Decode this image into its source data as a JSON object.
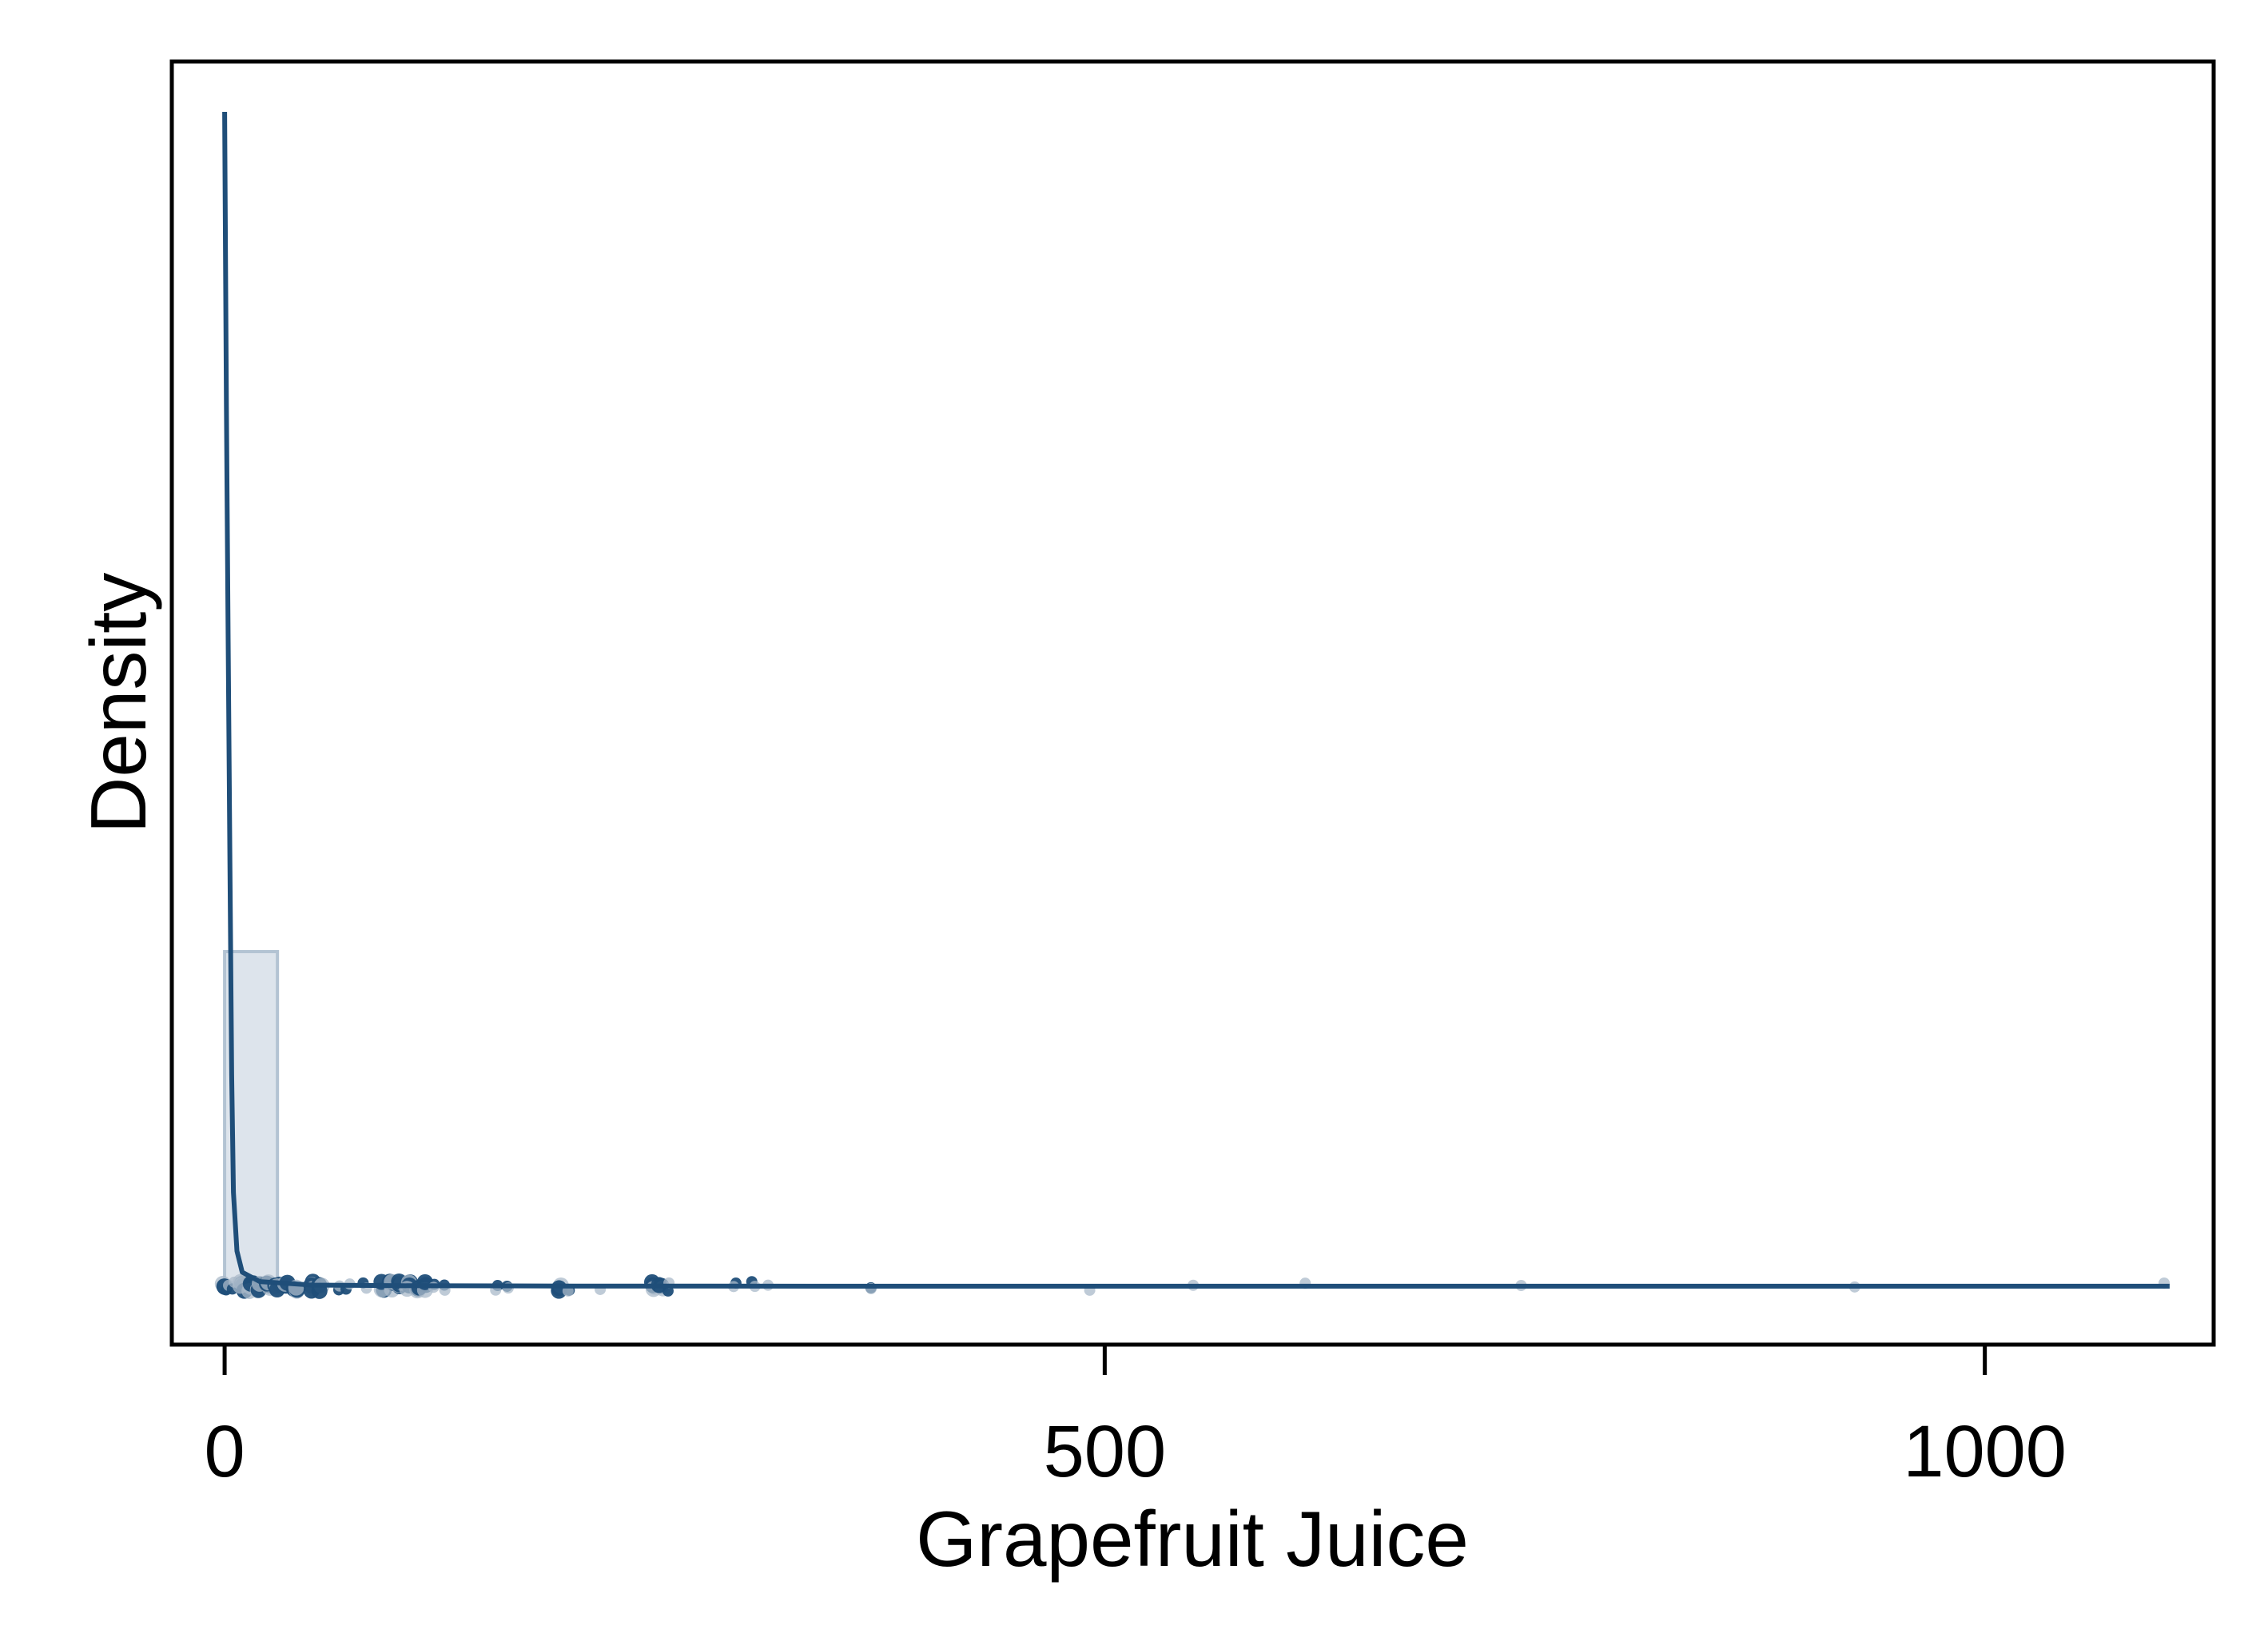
{
  "chart_data": {
    "type": "histogram-density",
    "title": "",
    "xlabel": "Grapefruit Juice",
    "ylabel": "Density",
    "xlim": [
      -30,
      1130
    ],
    "x_ticks": [
      0,
      500,
      1000
    ],
    "x_tick_labels": [
      "0",
      "500",
      "1000"
    ],
    "y_tick_labels": [],
    "grid": false,
    "legend": "none",
    "histogram": {
      "bins": [
        {
          "x0": 0,
          "x1": 30,
          "density": 0.0285
        }
      ]
    },
    "density_curve": {
      "x": [
        0,
        1,
        2,
        3,
        4,
        5,
        7,
        10,
        20,
        50,
        100,
        200,
        400,
        700,
        1000,
        1105
      ],
      "y": [
        0.1,
        0.075,
        0.055,
        0.036,
        0.018,
        0.008,
        0.003,
        0.0012,
        0.0004,
        0.0001,
        5e-05,
        2e-05,
        1e-05,
        1e-05,
        1e-05,
        1e-05
      ]
    },
    "observations": [
      {
        "value": 0,
        "n": 3
      },
      {
        "value": 2,
        "n": 2
      },
      {
        "value": 5,
        "n": 2
      },
      {
        "value": 10,
        "n": 6
      },
      {
        "value": 15,
        "n": 5
      },
      {
        "value": 20,
        "n": 6
      },
      {
        "value": 25,
        "n": 4
      },
      {
        "value": 30,
        "n": 5
      },
      {
        "value": 35,
        "n": 3
      },
      {
        "value": 40,
        "n": 4
      },
      {
        "value": 50,
        "n": 5
      },
      {
        "value": 55,
        "n": 3
      },
      {
        "value": 65,
        "n": 2
      },
      {
        "value": 70,
        "n": 2
      },
      {
        "value": 80,
        "n": 2
      },
      {
        "value": 90,
        "n": 3
      },
      {
        "value": 95,
        "n": 4
      },
      {
        "value": 100,
        "n": 5
      },
      {
        "value": 105,
        "n": 4
      },
      {
        "value": 110,
        "n": 3
      },
      {
        "value": 115,
        "n": 3
      },
      {
        "value": 120,
        "n": 2
      },
      {
        "value": 125,
        "n": 2
      },
      {
        "value": 155,
        "n": 2
      },
      {
        "value": 160,
        "n": 2
      },
      {
        "value": 190,
        "n": 3
      },
      {
        "value": 195,
        "n": 2
      },
      {
        "value": 213,
        "n": 1
      },
      {
        "value": 243,
        "n": 4
      },
      {
        "value": 248,
        "n": 3
      },
      {
        "value": 252,
        "n": 2
      },
      {
        "value": 290,
        "n": 2
      },
      {
        "value": 300,
        "n": 2
      },
      {
        "value": 310,
        "n": 1
      },
      {
        "value": 368,
        "n": 2
      },
      {
        "value": 492,
        "n": 1
      },
      {
        "value": 550,
        "n": 1
      },
      {
        "value": 613,
        "n": 1
      },
      {
        "value": 737,
        "n": 1
      },
      {
        "value": 925,
        "n": 1
      },
      {
        "value": 1103,
        "n": 1
      }
    ],
    "colors": {
      "line": "#1f4e79",
      "histogram_fill": "#dde4ec",
      "histogram_edge": "#b3c3d3",
      "points": "#1f4e79",
      "points_faded": "#a9b9c9"
    }
  }
}
